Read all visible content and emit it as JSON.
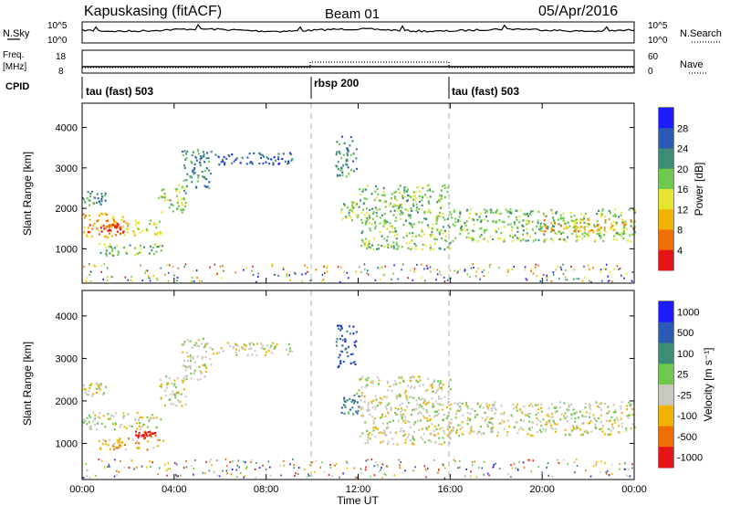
{
  "header": {
    "title": "Kapuskasing (fitACF)",
    "beam": "Beam 01",
    "date": "05/Apr/2016"
  },
  "strip_labels": {
    "nsky": "N.Sky",
    "nsky_ticks": [
      "10^5",
      "10^0"
    ],
    "nsearch": "N.Search",
    "nsearch_ticks": [
      "10^5",
      "10^0"
    ],
    "freq": "Freq.",
    "freq_unit": "[MHz]",
    "freq_ticks": [
      "18",
      "8"
    ],
    "nave": "Nave",
    "nave_ticks": [
      "60",
      "0"
    ],
    "cpid": "CPID"
  },
  "cpid_segments": [
    {
      "label": "tau (fast) 503",
      "start": 0,
      "end": 10
    },
    {
      "label": "rbsp 200",
      "start": 10,
      "end": 16
    },
    {
      "label": "tau (fast) 503",
      "start": 16,
      "end": 24
    }
  ],
  "colors": {
    "power": [
      "#1c1cff",
      "#2a5ab4",
      "#3d8c78",
      "#6ec84b",
      "#e6e632",
      "#f0b400",
      "#f06e00",
      "#e61414"
    ],
    "velocity": [
      "#1c1cff",
      "#2a5ab4",
      "#3d8c78",
      "#6ec84b",
      "#c8c8be",
      "#f0b400",
      "#f06e00",
      "#e61414"
    ],
    "ground_scatter": "#c8c8be"
  },
  "chart_data": [
    {
      "type": "heatmap",
      "name": "power",
      "ylabel": "Slant Range [km]",
      "yticks": [
        "1000",
        "2000",
        "3000",
        "4000"
      ],
      "ylim": [
        150,
        4600
      ],
      "xlim": [
        0,
        24
      ],
      "colorbar_label": "Power [dB]",
      "colorbar_ticks": [
        "4",
        "8",
        "12",
        "16",
        "20",
        "24",
        "28"
      ],
      "regions": [
        {
          "x": [
            0.0,
            1.9
          ],
          "y": [
            1300,
            1900
          ],
          "level": 5
        },
        {
          "x": [
            0.2,
            1.8
          ],
          "y": [
            1400,
            1650
          ],
          "level": 7
        },
        {
          "x": [
            1.9,
            3.4
          ],
          "y": [
            1350,
            1750
          ],
          "level": 4
        },
        {
          "x": [
            0.7,
            3.5
          ],
          "y": [
            850,
            1150
          ],
          "level": 3
        },
        {
          "x": [
            0.0,
            1.0
          ],
          "y": [
            2100,
            2450
          ],
          "level": 2
        },
        {
          "x": [
            3.3,
            4.5
          ],
          "y": [
            1900,
            2600
          ],
          "level": 3
        },
        {
          "x": [
            4.3,
            5.6
          ],
          "y": [
            2500,
            3500
          ],
          "level": 2
        },
        {
          "x": [
            5.6,
            9.2
          ],
          "y": [
            3100,
            3400
          ],
          "level": 1
        },
        {
          "x": [
            11.0,
            11.9
          ],
          "y": [
            2800,
            3800
          ],
          "level": 2
        },
        {
          "x": [
            11.2,
            12.0
          ],
          "y": [
            1700,
            2200
          ],
          "level": 3
        },
        {
          "x": [
            12.0,
            16.0
          ],
          "y": [
            1000,
            2600
          ],
          "level": 3
        },
        {
          "x": [
            16.0,
            24.0
          ],
          "y": [
            1200,
            2000
          ],
          "level": 3
        },
        {
          "x": [
            20.0,
            24.0
          ],
          "y": [
            1450,
            1750
          ],
          "level": 5
        }
      ]
    },
    {
      "type": "heatmap",
      "name": "velocity",
      "ylabel": "Slant Range [km]",
      "yticks": [
        "1000",
        "2000",
        "3000",
        "4000"
      ],
      "ylim": [
        150,
        4600
      ],
      "xlim": [
        0,
        24
      ],
      "colorbar_label": "Velocity [m s⁻¹]",
      "colorbar_ticks": [
        "1000",
        "500",
        "100",
        "25",
        "-25",
        "-100",
        "-500",
        "-1000"
      ],
      "regions": [
        {
          "x": [
            0.0,
            3.4
          ],
          "y": [
            1350,
            1750
          ],
          "level": 4
        },
        {
          "x": [
            0.0,
            1.0
          ],
          "y": [
            2100,
            2450
          ],
          "level": 4
        },
        {
          "x": [
            0.7,
            3.5
          ],
          "y": [
            850,
            1150
          ],
          "level": 5
        },
        {
          "x": [
            2.3,
            3.2
          ],
          "y": [
            1150,
            1300
          ],
          "level": 7
        },
        {
          "x": [
            3.3,
            4.5
          ],
          "y": [
            1900,
            2600
          ],
          "level": 4
        },
        {
          "x": [
            4.3,
            5.6
          ],
          "y": [
            2500,
            3500
          ],
          "level": 4
        },
        {
          "x": [
            5.6,
            9.2
          ],
          "y": [
            3100,
            3400
          ],
          "level": 4
        },
        {
          "x": [
            11.0,
            11.9
          ],
          "y": [
            2800,
            3800
          ],
          "level": 1
        },
        {
          "x": [
            11.2,
            12.0
          ],
          "y": [
            1700,
            2200
          ],
          "level": 2
        },
        {
          "x": [
            12.0,
            16.0
          ],
          "y": [
            1000,
            2600
          ],
          "level": 4
        },
        {
          "x": [
            16.0,
            24.0
          ],
          "y": [
            1200,
            2000
          ],
          "level": 4
        }
      ]
    }
  ],
  "xaxis": {
    "label": "Time UT",
    "ticks": [
      "00:00",
      "04:00",
      "08:00",
      "12:00",
      "16:00",
      "20:00",
      "00:00"
    ]
  }
}
